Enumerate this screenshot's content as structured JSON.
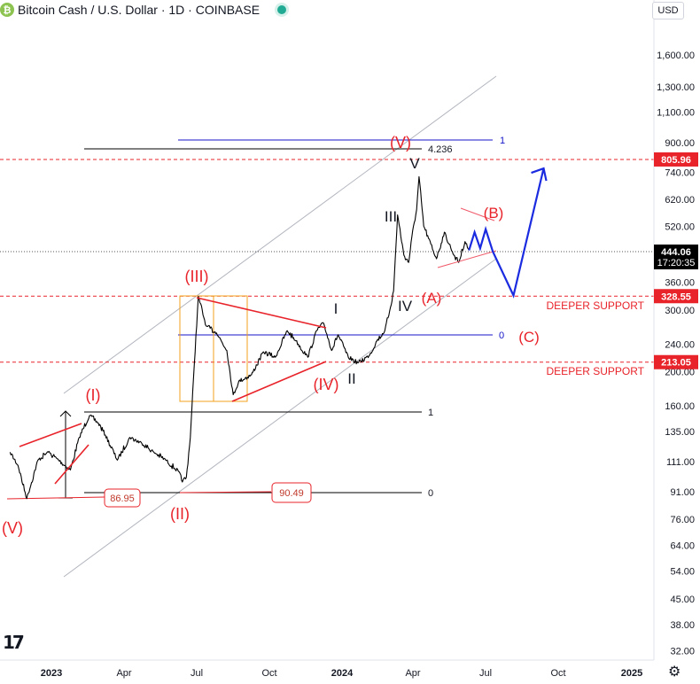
{
  "header": {
    "title": "Bitcoin Cash / U.S. Dollar · 1D · COINBASE",
    "coin_icon": "bitcoin-cash-icon"
  },
  "currency": "USD",
  "colors": {
    "red": "#e8232a",
    "blue": "#1414c8",
    "arrow_blue": "#1a2be0",
    "price": "#000000"
  },
  "price_scale": [
    "1,600.00",
    "1,300.00",
    "1,100.00",
    "900.00",
    "740.00",
    "620.00",
    "520.00",
    "360.00",
    "300.00",
    "240.00",
    "200.00",
    "160.00",
    "135.00",
    "111.00",
    "91.00",
    "76.00",
    "64.00",
    "54.00",
    "45.00",
    "38.00",
    "32.00"
  ],
  "price_tags": {
    "top": "805.96",
    "current": "444.06",
    "countdown": "17:20:35",
    "support1": "328.55",
    "support2": "213.05"
  },
  "time_axis": [
    "2023",
    "Apr",
    "Jul",
    "Oct",
    "2024",
    "Apr",
    "Jul",
    "Oct",
    "2025"
  ],
  "labels": {
    "wave_I": "(I)",
    "wave_II": "(II)",
    "wave_III": "(III)",
    "wave_IV": "(IV)",
    "wave_V_top": "(V)",
    "wave_V_low": "(V)",
    "sub_I": "I",
    "sub_II": "II",
    "sub_III": "III",
    "sub_IV": "IV",
    "sub_V": "V",
    "A": "(A)",
    "B": "(B)",
    "C": "(C)",
    "deeper_support_1": "DEEPER SUPPORT",
    "deeper_support_2": "DEEPER SUPPORT",
    "box_low": "86.95",
    "box_ii": "90.49",
    "fib_1_top": "1",
    "fib_4236": "4.236",
    "fib_0_mid": "0",
    "fib_1_mid": "1",
    "fib_0_low": "0"
  },
  "chart_data": {
    "type": "line",
    "title": "Bitcoin Cash / U.S. Dollar · 1D · COINBASE",
    "y_scale": "log",
    "ylim": [
      30,
      1850
    ],
    "x_range": [
      "2022-10-15",
      "2025-02-15"
    ],
    "series": [
      {
        "x": [
          "2022-11-10",
          "2022-11-20",
          "2022-12-01",
          "2022-12-15",
          "2022-12-28",
          "2023-01-10",
          "2023-01-25",
          "2023-02-05",
          "2023-02-18",
          "2023-03-01",
          "2023-03-10",
          "2023-03-25",
          "2023-04-10",
          "2023-04-25",
          "2023-05-10",
          "2023-05-25",
          "2023-06-10",
          "2023-06-15",
          "2023-06-20",
          "2023-06-25",
          "2023-06-30",
          "2023-07-05",
          "2023-07-15",
          "2023-07-28",
          "2023-08-10",
          "2023-08-18",
          "2023-08-25",
          "2023-09-10",
          "2023-09-25",
          "2023-10-10",
          "2023-10-25",
          "2023-11-05",
          "2023-11-20",
          "2023-12-01",
          "2023-12-10",
          "2023-12-20",
          "2023-12-28",
          "2024-01-10",
          "2024-01-22",
          "2024-02-05",
          "2024-02-15",
          "2024-02-25",
          "2024-03-03",
          "2024-03-07",
          "2024-03-12",
          "2024-03-20",
          "2024-03-26",
          "2024-04-01",
          "2024-04-05",
          "2024-04-08",
          "2024-04-14",
          "2024-04-20",
          "2024-04-30",
          "2024-05-10",
          "2024-05-20",
          "2024-05-28",
          "2024-06-05",
          "2024-06-10"
        ],
        "y": [
          118,
          108,
          87,
          112,
          118,
          112,
          105,
          130,
          150,
          143,
          132,
          112,
          130,
          125,
          118,
          112,
          104,
          97,
          100,
          130,
          210,
          328,
          270,
          258,
          230,
          172,
          188,
          196,
          228,
          220,
          262,
          245,
          220,
          262,
          275,
          230,
          255,
          220,
          212,
          222,
          245,
          262,
          305,
          340,
          560,
          430,
          410,
          520,
          580,
          720,
          520,
          480,
          420,
          500,
          440,
          410,
          470,
          444
        ]
      }
    ],
    "levels": [
      {
        "name": "top",
        "y": 805.96
      },
      {
        "name": "deeper-support-1",
        "y": 328.55
      },
      {
        "name": "deeper-support-2",
        "y": 213.05
      }
    ],
    "projection": {
      "x": [
        "2024-06-10",
        "2024-06-17",
        "2024-06-24",
        "2024-07-01",
        "2024-07-10",
        "2024-08-05",
        "2024-09-12"
      ],
      "y": [
        444,
        500,
        450,
        510,
        440,
        330,
        760
      ]
    }
  }
}
